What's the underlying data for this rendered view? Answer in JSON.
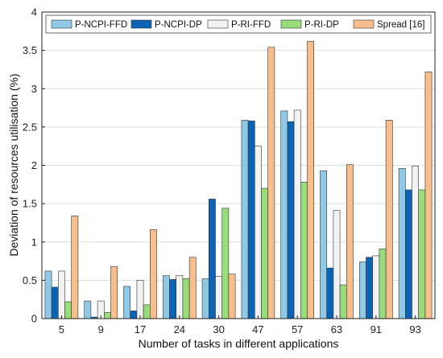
{
  "chart_data": {
    "type": "bar",
    "xlabel": "Number of tasks in different applications",
    "ylabel": "Deviation of resources utilisation (%)",
    "categories": [
      "5",
      "9",
      "17",
      "24",
      "30",
      "47",
      "57",
      "63",
      "91",
      "93"
    ],
    "ylim": [
      0,
      4
    ],
    "yticks": [
      "0",
      "0.5",
      "1",
      "1.5",
      "2",
      "2.5",
      "3",
      "3.5",
      "4"
    ],
    "grid": true,
    "legend_position": "top",
    "series": [
      {
        "name": "P-NCPI-FFD",
        "color": "#8fc9e5",
        "values": [
          0.62,
          0.23,
          0.42,
          0.56,
          0.52,
          2.59,
          2.71,
          1.93,
          0.74,
          1.96
        ]
      },
      {
        "name": "P-NCPI-DP",
        "color": "#0b63b5",
        "values": [
          0.41,
          0.02,
          0.1,
          0.51,
          1.56,
          2.58,
          2.57,
          0.66,
          0.8,
          1.68
        ]
      },
      {
        "name": "P-RI-FFD",
        "color": "#f2f2f2",
        "values": [
          0.62,
          0.23,
          0.5,
          0.56,
          0.55,
          2.25,
          2.72,
          1.41,
          0.82,
          1.99
        ]
      },
      {
        "name": "P-RI-DP",
        "color": "#99dc7a",
        "values": [
          0.22,
          0.08,
          0.18,
          0.52,
          1.44,
          1.7,
          1.78,
          0.44,
          0.91,
          1.68
        ]
      },
      {
        "name": "Spread [16]",
        "color": "#f8be8c",
        "values": [
          1.34,
          0.68,
          1.16,
          0.8,
          0.58,
          3.54,
          3.62,
          2.01,
          2.59,
          3.22
        ]
      }
    ]
  }
}
